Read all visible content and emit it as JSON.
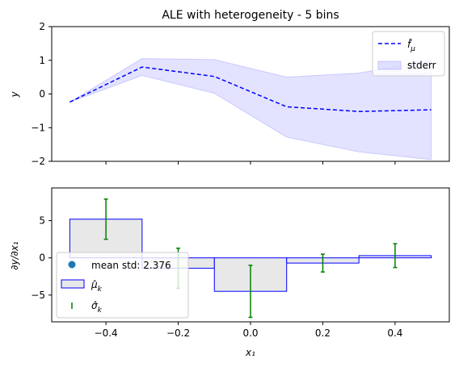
{
  "chart_data": [
    {
      "type": "line",
      "title": "ALE with heterogeneity - 5 bins",
      "xlabel": "",
      "ylabel": "y",
      "xlim": [
        -0.55,
        0.55
      ],
      "ylim": [
        -2,
        2
      ],
      "yticks": [
        "2",
        "1",
        "0",
        "−1",
        "−2"
      ],
      "ytick_values": [
        2,
        1,
        0,
        -1,
        -2
      ],
      "series": [
        {
          "name": "f̂_μ",
          "style": "dashed",
          "color": "#0000ff",
          "x": [
            -0.5,
            -0.3,
            -0.1,
            0.1,
            0.3,
            0.5
          ],
          "y": [
            -0.24,
            0.8,
            0.52,
            -0.38,
            -0.52,
            -0.47
          ]
        }
      ],
      "band": {
        "name": "stderr",
        "color": "#8080ff",
        "x": [
          -0.5,
          -0.3,
          -0.1,
          0.1,
          0.3,
          0.5
        ],
        "lower": [
          -0.24,
          0.55,
          0.02,
          -1.28,
          -1.72,
          -1.95
        ],
        "upper": [
          -0.24,
          1.05,
          1.02,
          0.5,
          0.62,
          1.0
        ]
      },
      "legend": {
        "placement": "top-right",
        "entries": [
          {
            "label": "f̂_μ",
            "kind": "dashed-line"
          },
          {
            "label": "stderr",
            "kind": "patch"
          }
        ]
      }
    },
    {
      "type": "bar",
      "title": "",
      "xlabel": "x₁",
      "ylabel": "∂y/∂x₁",
      "xlim": [
        -0.55,
        0.55
      ],
      "ylim": [
        -8.6,
        9.4
      ],
      "xticks": [
        "−0.4",
        "−0.2",
        "0.0",
        "0.2",
        "0.4"
      ],
      "xtick_values": [
        -0.4,
        -0.2,
        0,
        0.2,
        0.4
      ],
      "yticks": [
        "5",
        "0",
        "−5"
      ],
      "ytick_values": [
        5,
        0,
        -5
      ],
      "bins": [
        {
          "x0": -0.5,
          "x1": -0.3,
          "mu": 5.2,
          "sigma": 2.7
        },
        {
          "x0": -0.3,
          "x1": -0.1,
          "mu": -1.4,
          "sigma": 2.7
        },
        {
          "x0": -0.1,
          "x1": 0.1,
          "mu": -4.5,
          "sigma": 3.5
        },
        {
          "x0": 0.1,
          "x1": 0.3,
          "mu": -0.7,
          "sigma": 1.2
        },
        {
          "x0": 0.3,
          "x1": 0.5,
          "mu": 0.3,
          "sigma": 1.6
        }
      ],
      "bar_fill": "#e8e8e8",
      "bar_edge": "#0000ff",
      "err_color": "#008000",
      "legend": {
        "placement": "bottom-left",
        "entries": [
          {
            "label": "mean std: 2.376",
            "kind": "dot"
          },
          {
            "label": "μ̂_k",
            "kind": "patch"
          },
          {
            "label": "σ̂_k",
            "kind": "errbar"
          }
        ]
      }
    }
  ]
}
